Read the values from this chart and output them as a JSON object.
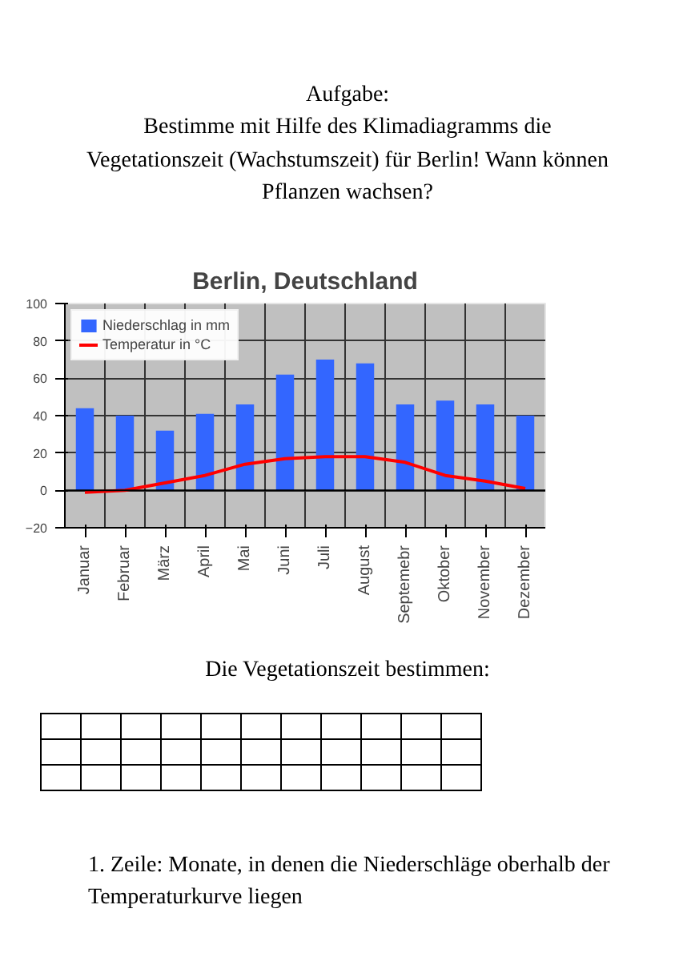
{
  "chart_data": {
    "type": "bar",
    "title": "Berlin, Deutschland",
    "categories": [
      "Januar",
      "Februar",
      "März",
      "April",
      "Mai",
      "Juni",
      "Juli",
      "August",
      "Septemebr",
      "Oktober",
      "November",
      "Dezember"
    ],
    "series": [
      {
        "name": "Niederschlag in mm",
        "color": "#3366ff",
        "values": [
          44,
          40,
          32,
          41,
          46,
          62,
          70,
          68,
          46,
          48,
          46,
          40
        ]
      },
      {
        "name": "Temperatur in °C",
        "type": "line",
        "color": "#ff0000",
        "values": [
          -1,
          0,
          4,
          8,
          14,
          17,
          18,
          18,
          15,
          8,
          5,
          1
        ]
      }
    ],
    "ylim": [
      -20,
      100
    ],
    "yticks": [
      -20,
      0,
      20,
      40,
      60,
      80,
      100
    ],
    "grid": true,
    "legend": "top left",
    "annotations": [
      "Aufgabe:",
      "Bestimme mit Hilfe des Klimadiagramms die Vegetationszeit (Wachstumszeit) für Berlin! Wann können Pflanzen wachsen?",
      "Die Vegetationszeit bestimmen:",
      "1. Zeile: Monate, in denen die Niederschläge oberhalb der Temperaturkurve liegen"
    ]
  }
}
